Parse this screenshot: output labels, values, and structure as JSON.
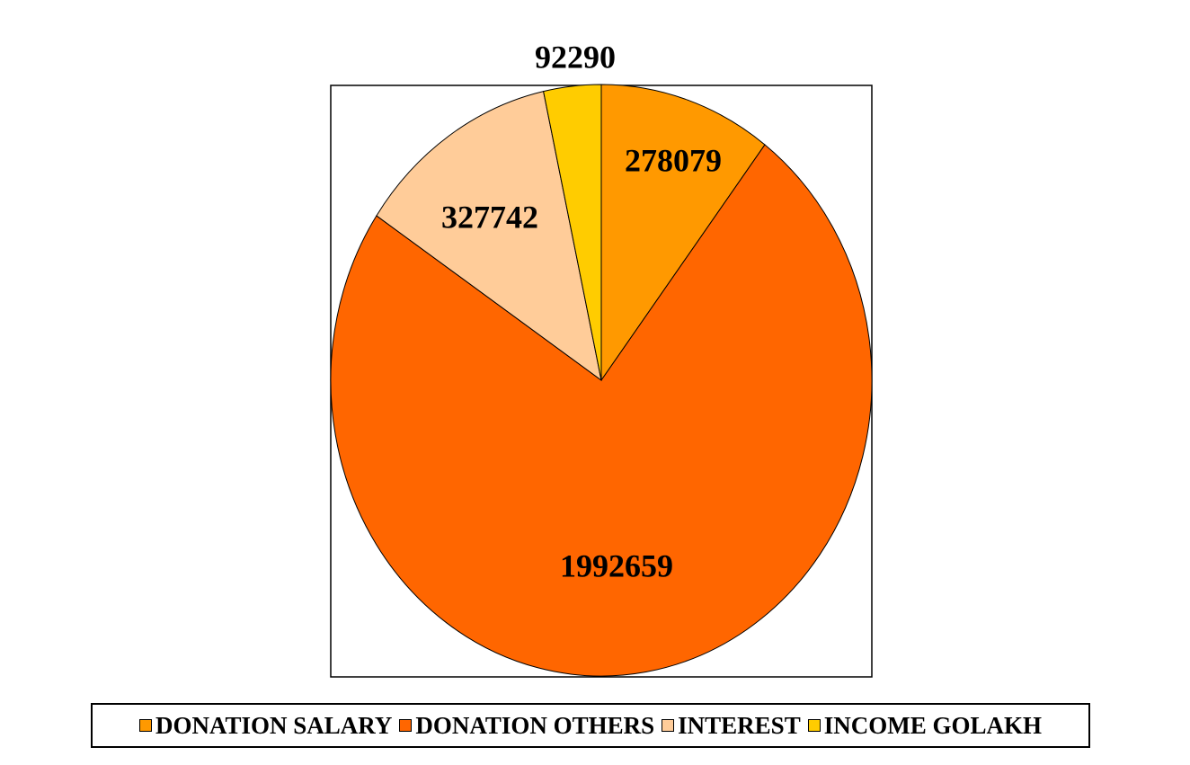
{
  "chart_data": {
    "type": "pie",
    "title": "",
    "start_angle": "12 o'clock",
    "direction": "clockwise",
    "slices": [
      {
        "label": "DONATION SALARY",
        "value": 278079,
        "color": "#FF9900"
      },
      {
        "label": "DONATION OTHERS",
        "value": 1992659,
        "color": "#FF6600"
      },
      {
        "label": "INTEREST",
        "value": 327742,
        "color": "#FFCC99"
      },
      {
        "label": "INCOME GOLAKH",
        "value": 92290,
        "color": "#FFCC00"
      }
    ],
    "legend_position": "bottom",
    "plot_border": true
  }
}
